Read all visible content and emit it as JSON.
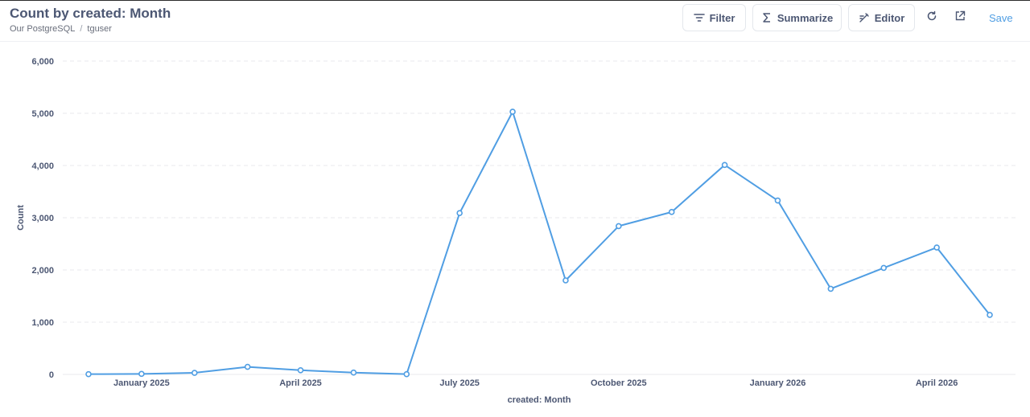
{
  "header": {
    "title": "Count by created: Month",
    "breadcrumb": [
      "Our PostgreSQL",
      "tguser"
    ],
    "breadcrumb_separator": "/",
    "buttons": {
      "filter": "Filter",
      "summarize": "Summarize",
      "editor": "Editor",
      "save": "Save"
    },
    "icons": [
      "filter-icon",
      "sigma-icon",
      "notebook-icon",
      "refresh-icon",
      "external-link-icon"
    ],
    "accent_color": "#509ee3"
  },
  "chart_data": {
    "type": "line",
    "xlabel": "created: Month",
    "ylabel": "Count",
    "ylim": [
      0,
      6000
    ],
    "yticks": [
      0,
      1000,
      2000,
      3000,
      4000,
      5000,
      6000
    ],
    "ytick_labels": [
      "0",
      "1,000",
      "2,000",
      "3,000",
      "4,000",
      "5,000",
      "6,000"
    ],
    "x": [
      "2025-01",
      "2025-02",
      "2025-03",
      "2025-04",
      "2025-05",
      "2025-06",
      "2025-07",
      "2025-08",
      "2025-09",
      "2025-10",
      "2025-11",
      "2025-12",
      "2026-01",
      "2026-02",
      "2026-03",
      "2026-04",
      "2026-05",
      "2026-06"
    ],
    "xtick_labels": [
      {
        "month": "2025-02",
        "label": "January 2025"
      },
      {
        "month": "2025-05",
        "label": "April 2025"
      },
      {
        "month": "2025-08",
        "label": "July 2025"
      },
      {
        "month": "2025-11",
        "label": "October 2025"
      },
      {
        "month": "2026-02",
        "label": "January 2026"
      },
      {
        "month": "2026-05",
        "label": "April 2026"
      }
    ],
    "series": [
      {
        "values": [
          5,
          10,
          30,
          145,
          80,
          35,
          5,
          3090,
          5030,
          1800,
          2840,
          3110,
          4010,
          3330,
          1640,
          2040,
          2430,
          1140
        ],
        "color": "#509ee3"
      }
    ],
    "grid": true,
    "legend": "none"
  }
}
